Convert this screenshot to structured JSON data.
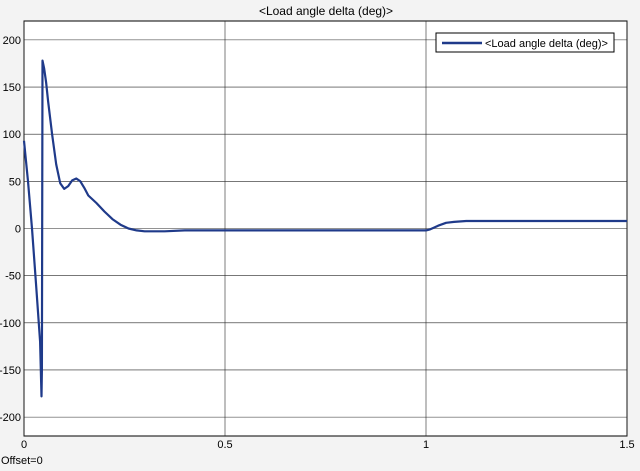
{
  "window": {
    "offset_label": "Offset=0"
  },
  "colors": {
    "background": "#f3f3f3",
    "axes_background": "#ffffff",
    "grid": "#262626",
    "series": "#1f3a8a"
  },
  "chart_data": {
    "type": "line",
    "title": "<Load angle   delta  (deg)>",
    "xlabel": "",
    "ylabel": "",
    "xlim": [
      0,
      1.5
    ],
    "ylim": [
      -220,
      220
    ],
    "xticks": [
      0,
      0.5,
      1,
      1.5
    ],
    "xtick_labels": [
      "0",
      "0.5",
      "1",
      "1.5"
    ],
    "yticks": [
      -200,
      -150,
      -100,
      -50,
      0,
      50,
      100,
      150,
      200
    ],
    "ytick_labels": [
      "-200",
      "-150",
      "-100",
      "-50",
      "0",
      "50",
      "100",
      "150",
      "200"
    ],
    "grid": true,
    "legend_position": "top-right",
    "series": [
      {
        "name": "<Load angle   delta  (deg)>",
        "x": [
          0,
          0.01,
          0.02,
          0.03,
          0.04,
          0.0435,
          0.0445,
          0.046,
          0.05,
          0.055,
          0.06,
          0.07,
          0.08,
          0.09,
          0.1,
          0.11,
          0.12,
          0.13,
          0.14,
          0.15,
          0.16,
          0.18,
          0.2,
          0.22,
          0.24,
          0.26,
          0.28,
          0.3,
          0.35,
          0.4,
          0.5,
          0.6,
          0.7,
          0.8,
          0.9,
          0.95,
          1.0,
          1.01,
          1.02,
          1.03,
          1.05,
          1.07,
          1.1,
          1.15,
          1.2,
          1.3,
          1.4,
          1.5
        ],
        "y": [
          93,
          50,
          0,
          -60,
          -120,
          -178,
          -150,
          178,
          170,
          155,
          135,
          100,
          68,
          48,
          42,
          45,
          51,
          53,
          50,
          43,
          35,
          27,
          18,
          10,
          4,
          0,
          -2,
          -3,
          -3,
          -2,
          -2,
          -2,
          -2,
          -2,
          -2,
          -2,
          -2,
          -1,
          1,
          3,
          6,
          7,
          8,
          8,
          8,
          8,
          8,
          8
        ]
      }
    ]
  }
}
